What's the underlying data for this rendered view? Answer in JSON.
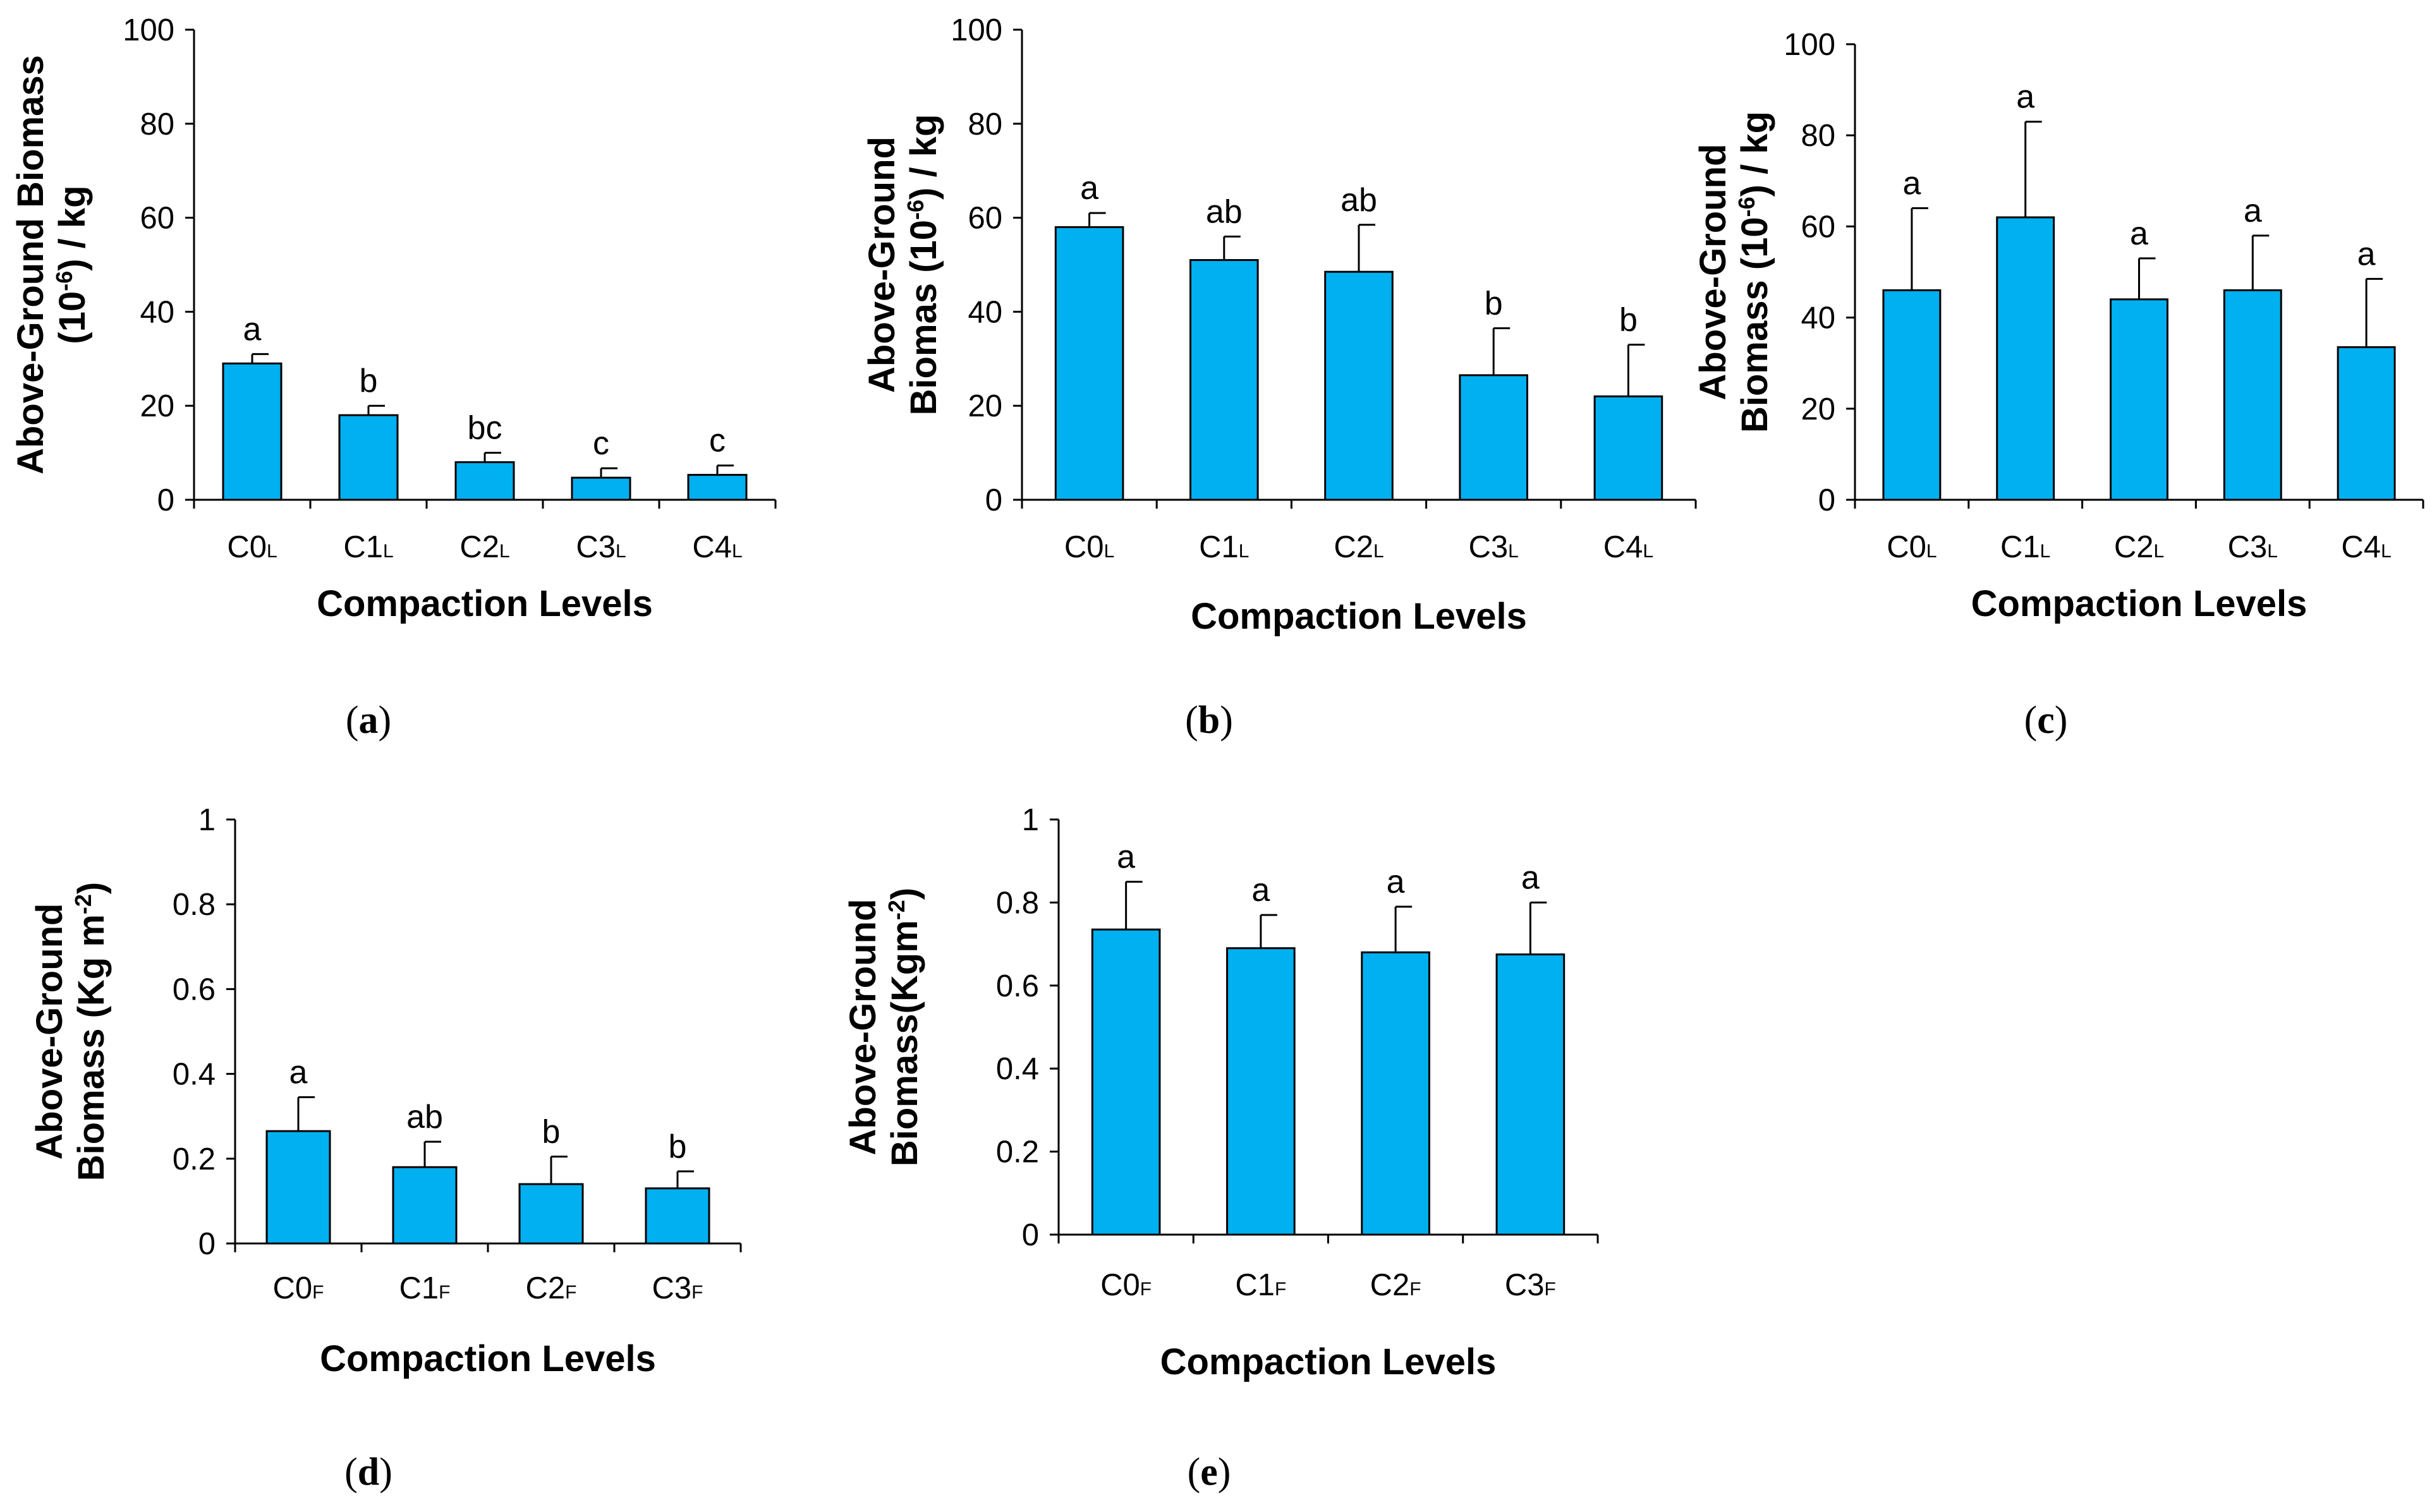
{
  "bar_color": "#00B0F0",
  "axis_color": "#000000",
  "chart_data": [
    {
      "id": "a",
      "type": "bar",
      "caption": "a",
      "xlabel": "Compaction Levels",
      "ylabel_lines": [
        [
          "Above-Ground Biomass"
        ],
        [
          "(10",
          "-6",
          ") / kg"
        ]
      ],
      "categories": [
        [
          "C0",
          "L"
        ],
        [
          "C1",
          "L"
        ],
        [
          "C2",
          "L"
        ],
        [
          "C3",
          "L"
        ],
        [
          "C4",
          "L"
        ]
      ],
      "values": [
        29,
        18,
        8,
        4.7,
        5.3
      ],
      "errors": [
        2,
        2,
        2,
        2,
        2
      ],
      "letters": [
        "a",
        "b",
        "bc",
        "c",
        "c"
      ],
      "ylim": [
        0,
        100
      ],
      "yticks": [
        0,
        20,
        40,
        60,
        80,
        100
      ],
      "ytick_labels": [
        "0",
        "20",
        "40",
        "60",
        "80",
        "100"
      ]
    },
    {
      "id": "b",
      "type": "bar",
      "caption": "b",
      "xlabel": "Compaction Levels",
      "ylabel_lines": [
        [
          "Above-Ground"
        ],
        [
          "Biomas (10",
          "-6",
          ") / kg"
        ]
      ],
      "categories": [
        [
          "C0",
          "L"
        ],
        [
          "C1",
          "L"
        ],
        [
          "C2",
          "L"
        ],
        [
          "C3",
          "L"
        ],
        [
          "C4",
          "L"
        ]
      ],
      "values": [
        58,
        51,
        48.5,
        26.5,
        22
      ],
      "errors": [
        3,
        5,
        10,
        10,
        11
      ],
      "letters": [
        "a",
        "ab",
        "ab",
        "b",
        "b"
      ],
      "ylim": [
        0,
        100
      ],
      "yticks": [
        0,
        20,
        40,
        60,
        80,
        100
      ],
      "ytick_labels": [
        "0",
        "20",
        "40",
        "60",
        "80",
        "100"
      ]
    },
    {
      "id": "c",
      "type": "bar",
      "caption": "c",
      "xlabel": "Compaction Levels",
      "ylabel_lines": [
        [
          "Above-Ground"
        ],
        [
          "Biomass (10",
          "-6",
          ") / kg"
        ]
      ],
      "categories": [
        [
          "C0",
          "L"
        ],
        [
          "C1",
          "L"
        ],
        [
          "C2",
          "L"
        ],
        [
          "C3",
          "L"
        ],
        [
          "C4",
          "L"
        ]
      ],
      "values": [
        46,
        62,
        44,
        46,
        33.5
      ],
      "errors": [
        18,
        21,
        9,
        12,
        15
      ],
      "letters": [
        "a",
        "a",
        "a",
        "a",
        "a"
      ],
      "ylim": [
        0,
        100
      ],
      "yticks": [
        0,
        20,
        40,
        60,
        80,
        100
      ],
      "ytick_labels": [
        "0",
        "20",
        "40",
        "60",
        "80",
        "100"
      ]
    },
    {
      "id": "d",
      "type": "bar",
      "caption": "d",
      "xlabel": "Compaction Levels",
      "ylabel_lines": [
        [
          "Above-Ground"
        ],
        [
          "Biomass (Kg m",
          "-2",
          ")"
        ]
      ],
      "categories": [
        [
          "C0",
          "F"
        ],
        [
          "C1",
          "F"
        ],
        [
          "C2",
          "F"
        ],
        [
          "C3",
          "F"
        ]
      ],
      "values": [
        0.265,
        0.18,
        0.14,
        0.13
      ],
      "errors": [
        0.08,
        0.06,
        0.065,
        0.04
      ],
      "letters": [
        "a",
        "ab",
        "b",
        "b"
      ],
      "ylim": [
        0,
        1
      ],
      "yticks": [
        0,
        0.2,
        0.4,
        0.6,
        0.8,
        1
      ],
      "ytick_labels": [
        "0",
        "0.2",
        "0.4",
        "0.6",
        "0.8",
        "1"
      ]
    },
    {
      "id": "e",
      "type": "bar",
      "caption": "e",
      "xlabel": "Compaction Levels",
      "ylabel_lines": [
        [
          "Above-Ground"
        ],
        [
          "Biomass(Kgm",
          "-2",
          ")"
        ]
      ],
      "categories": [
        [
          "C0",
          "F"
        ],
        [
          "C1",
          "F"
        ],
        [
          "C2",
          "F"
        ],
        [
          "C3",
          "F"
        ]
      ],
      "values": [
        0.735,
        0.69,
        0.68,
        0.675
      ],
      "errors": [
        0.115,
        0.08,
        0.11,
        0.125
      ],
      "letters": [
        "a",
        "a",
        "a",
        "a"
      ],
      "ylim": [
        0,
        1
      ],
      "yticks": [
        0,
        0.2,
        0.4,
        0.6,
        0.8,
        1
      ],
      "ytick_labels": [
        "0",
        "0.2",
        "0.4",
        "0.6",
        "0.8",
        "1"
      ]
    }
  ]
}
